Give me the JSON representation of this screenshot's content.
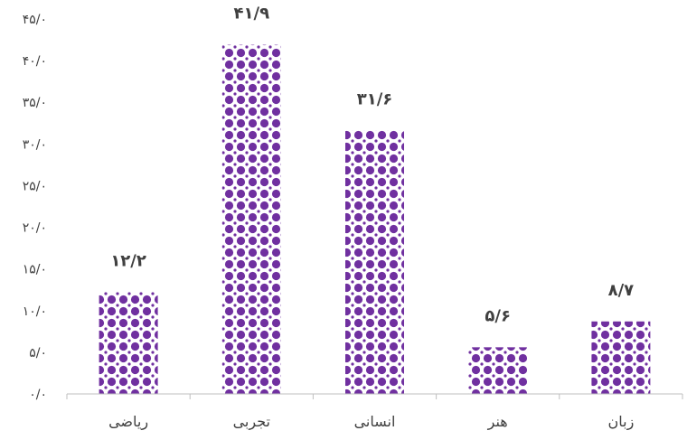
{
  "chart_data": {
    "type": "bar",
    "categories": [
      "ریاضی",
      "تجربی",
      "انسانی",
      "هنر",
      "زبان"
    ],
    "values": [
      12.2,
      41.9,
      31.6,
      5.6,
      8.7
    ],
    "value_labels": [
      "۱۲/۲",
      "۴۱/۹",
      "۳۱/۶",
      "۵/۶",
      "۸/۷"
    ],
    "ylim": [
      0,
      45
    ],
    "y_ticks": [
      0,
      5,
      10,
      15,
      20,
      25,
      30,
      35,
      40,
      45
    ],
    "y_tick_labels": [
      "۰/۰",
      "۵/۰",
      "۱۰/۰",
      "۱۵/۰",
      "۲۰/۰",
      "۲۵/۰",
      "۳۰/۰",
      "۳۵/۰",
      "۴۰/۰",
      "۴۵/۰"
    ],
    "title": "",
    "xlabel": "",
    "ylabel": "",
    "grid": false,
    "legend": "none",
    "bar_color": "#7030a0",
    "bar_pattern": "dots"
  }
}
